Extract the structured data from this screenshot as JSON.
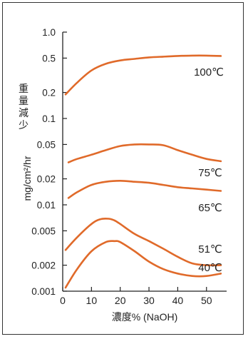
{
  "chart_data": {
    "type": "line",
    "title": "",
    "xlabel": "濃度% (NaOH)",
    "ylabel": "mg/cm²/hr",
    "ylabel_vertical": "重量減少",
    "xlim": [
      0,
      57
    ],
    "ylim": [
      0.001,
      1.0
    ],
    "yscale": "log",
    "grid": false,
    "legend": "none",
    "line_color": "#e06a2a",
    "x_ticks": [
      {
        "value": 0,
        "label": "0"
      },
      {
        "value": 10,
        "label": "10"
      },
      {
        "value": 20,
        "label": "20"
      },
      {
        "value": 30,
        "label": "30"
      },
      {
        "value": 40,
        "label": "40"
      },
      {
        "value": 50,
        "label": "50"
      }
    ],
    "y_ticks": [
      {
        "value": 1.0,
        "label": "1.0"
      },
      {
        "value": 0.5,
        "label": "0.5"
      },
      {
        "value": 0.2,
        "label": "0.2"
      },
      {
        "value": 0.1,
        "label": "0.1"
      },
      {
        "value": 0.05,
        "label": "0.05"
      },
      {
        "value": 0.02,
        "label": "0.02"
      },
      {
        "value": 0.01,
        "label": "0.01"
      },
      {
        "value": 0.005,
        "label": "0.005"
      },
      {
        "value": 0.002,
        "label": "0.002"
      },
      {
        "value": 0.001,
        "label": "0.001"
      }
    ],
    "series": [
      {
        "name": "100℃",
        "x": [
          1,
          5,
          10,
          15,
          20,
          25,
          30,
          35,
          40,
          45,
          50,
          55
        ],
        "y": [
          0.19,
          0.26,
          0.36,
          0.43,
          0.47,
          0.49,
          0.51,
          0.52,
          0.53,
          0.535,
          0.535,
          0.53
        ]
      },
      {
        "name": "75℃",
        "x": [
          2,
          5,
          10,
          15,
          20,
          25,
          30,
          35,
          40,
          45,
          50,
          55
        ],
        "y": [
          0.031,
          0.034,
          0.038,
          0.043,
          0.048,
          0.05,
          0.05,
          0.049,
          0.043,
          0.038,
          0.034,
          0.032
        ]
      },
      {
        "name": "65℃",
        "x": [
          2,
          5,
          10,
          15,
          20,
          25,
          30,
          35,
          40,
          45,
          50,
          55
        ],
        "y": [
          0.012,
          0.014,
          0.017,
          0.0185,
          0.019,
          0.0185,
          0.018,
          0.017,
          0.016,
          0.0155,
          0.015,
          0.0145
        ]
      },
      {
        "name": "51℃",
        "x": [
          1,
          5,
          10,
          13,
          16,
          18,
          20,
          25,
          30,
          35,
          40,
          45,
          50,
          55
        ],
        "y": [
          0.003,
          0.0042,
          0.006,
          0.0068,
          0.0069,
          0.0066,
          0.006,
          0.0046,
          0.0038,
          0.0031,
          0.0025,
          0.0021,
          0.002,
          0.002
        ]
      },
      {
        "name": "40℃",
        "x": [
          1,
          5,
          10,
          15,
          18,
          20,
          25,
          30,
          35,
          40,
          45,
          50,
          55
        ],
        "y": [
          0.0011,
          0.0018,
          0.0029,
          0.0037,
          0.0038,
          0.0037,
          0.0029,
          0.0022,
          0.0018,
          0.0016,
          0.0015,
          0.0015,
          0.0016
        ]
      }
    ]
  }
}
